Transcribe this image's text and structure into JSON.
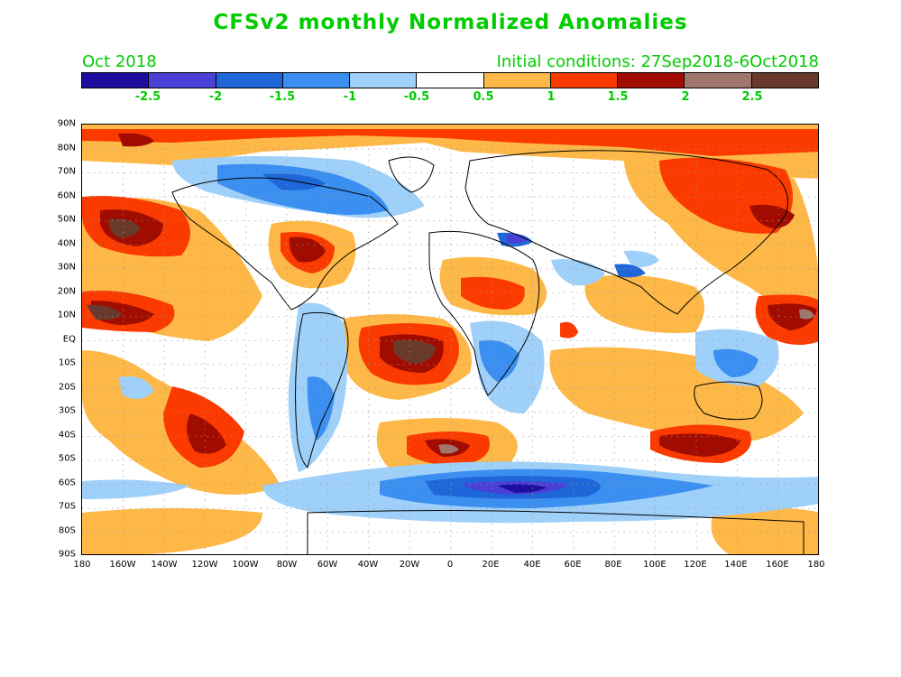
{
  "title": "CFSv2 monthly Normalized Anomalies",
  "valid_month": "Oct 2018",
  "initial_conditions": "Initial conditions: 27Sep2018-6Oct2018",
  "colorbar": {
    "colors": [
      "#1e0ea0",
      "#4a3fd6",
      "#1f66d9",
      "#3b8ff0",
      "#9fd0f9",
      "#ffffff",
      "#fdb847",
      "#fb3a00",
      "#a00d00",
      "#a0776f",
      "#693a2b"
    ],
    "labels": [
      "-2.5",
      "-2",
      "-1.5",
      "-1",
      "-0.5",
      "0.5",
      "1",
      "1.5",
      "2",
      "2.5"
    ]
  },
  "axes": {
    "lat_labels": [
      "90N",
      "80N",
      "70N",
      "60N",
      "50N",
      "40N",
      "30N",
      "20N",
      "10N",
      "EQ",
      "10S",
      "20S",
      "30S",
      "40S",
      "50S",
      "60S",
      "70S",
      "80S",
      "90S"
    ],
    "lon_labels": [
      "180",
      "160W",
      "140W",
      "120W",
      "100W",
      "80W",
      "60W",
      "40W",
      "20W",
      "0",
      "20E",
      "40E",
      "60E",
      "80E",
      "100E",
      "120E",
      "140E",
      "160E",
      "180"
    ]
  }
}
